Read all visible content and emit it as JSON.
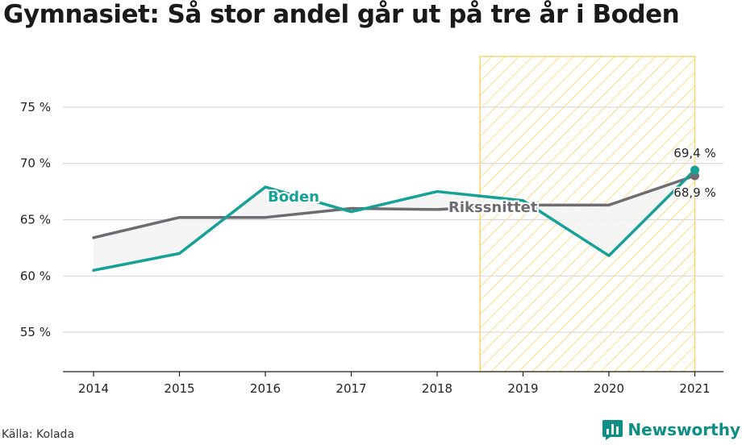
{
  "chart_data": {
    "type": "line",
    "title": "Gymnasiet: Så stor andel går ut på tre år i Boden",
    "x": [
      "2014",
      "2015",
      "2016",
      "2017",
      "2018",
      "2019",
      "2020",
      "2021"
    ],
    "series": [
      {
        "name": "Boden",
        "values": [
          60.5,
          62.0,
          67.9,
          65.7,
          67.5,
          66.7,
          61.8,
          69.4
        ],
        "color": "#15a197"
      },
      {
        "name": "Rikssnittet",
        "values": [
          63.4,
          65.2,
          65.2,
          66.0,
          65.9,
          66.3,
          66.3,
          68.9
        ],
        "color": "#6f6c71"
      }
    ],
    "ylim": [
      51.5,
      79.5
    ],
    "yticks": [
      55,
      60,
      65,
      70,
      75
    ],
    "ytick_labels": [
      "55 %",
      "60 %",
      "65 %",
      "70 %",
      "75 %"
    ],
    "highlight_range": [
      "2019",
      "2021"
    ],
    "highlight_color": "#f4c531",
    "end_labels": {
      "boden": "69,4 %",
      "riks": "68,9 %"
    },
    "xlabel": "",
    "ylabel": ""
  },
  "source": "Källa: Kolada",
  "brand": {
    "name": "Newsworthy",
    "icon": "bar-chart-icon",
    "color": "#0e8f86"
  }
}
